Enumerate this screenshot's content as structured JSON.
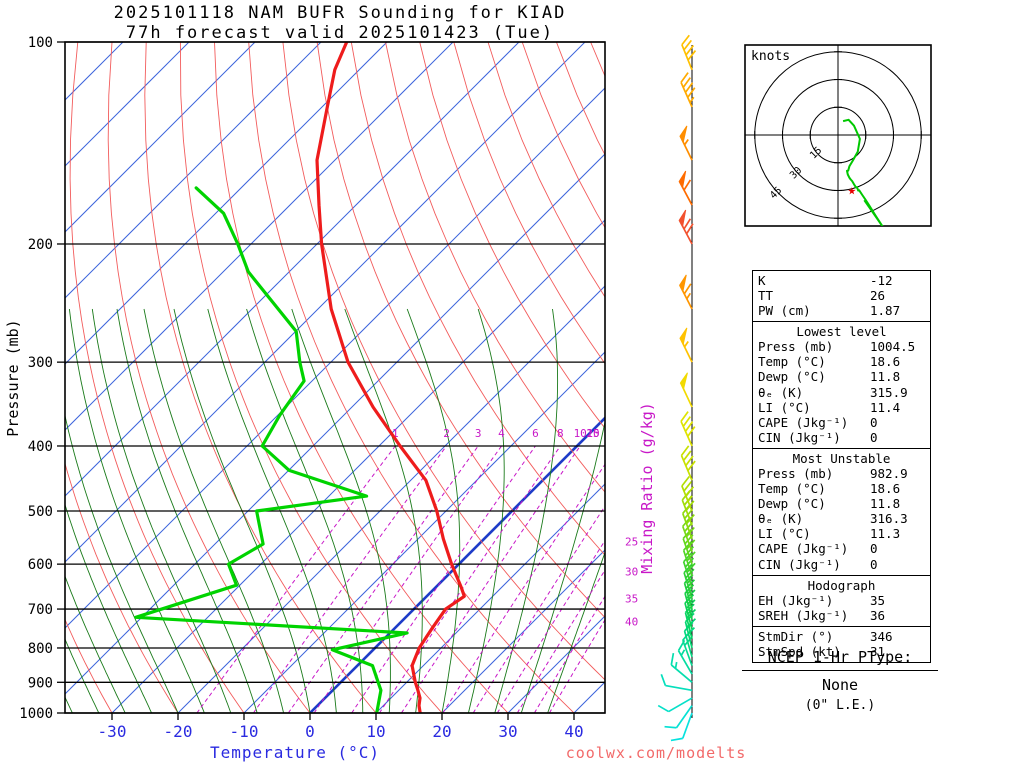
{
  "title": {
    "line1": "2025101118 NAM BUFR Sounding for KIAD",
    "line2": "77h forecast valid 2025101423 (Tue)"
  },
  "axes": {
    "pressure_label": "Pressure (mb)",
    "temperature_label": "Temperature (°C)",
    "mixing_ratio_label": "Mixing Ratio (g/kg)",
    "pressure_ticks": [
      100,
      200,
      300,
      400,
      500,
      600,
      700,
      800,
      900,
      1000
    ],
    "temperature_ticks": [
      -30,
      -20,
      -10,
      0,
      10,
      20,
      30,
      40
    ]
  },
  "chart_data": {
    "type": "line",
    "diagram": "skew-t-log-p",
    "title": "2025101118 NAM BUFR Sounding for KIAD, 77h forecast valid 2025101423 (Tue)",
    "x_axis": {
      "label": "Temperature (°C)",
      "ticks": [
        -30,
        -20,
        -10,
        0,
        10,
        20,
        30,
        40
      ]
    },
    "y_axis": {
      "label": "Pressure (mb)",
      "scale": "log",
      "ticks": [
        100,
        200,
        300,
        400,
        500,
        600,
        700,
        800,
        900,
        1000
      ]
    },
    "series": [
      {
        "name": "Temperature (°C)",
        "color": "#ee1c1c",
        "pressure_mb": [
          1000,
          975,
          950,
          925,
          900,
          850,
          800,
          750,
          700,
          670,
          650,
          600,
          550,
          500,
          450,
          400,
          350,
          300,
          250,
          200,
          175,
          150,
          125,
          110,
          100
        ],
        "values": [
          16.7,
          15.4,
          14.4,
          12.9,
          11.3,
          8.3,
          6.7,
          5.7,
          4.8,
          5.7,
          3.9,
          -1.1,
          -6.2,
          -11.4,
          -17.7,
          -26.8,
          -36.8,
          -47.4,
          -58.0,
          -69.3,
          -75.6,
          -82.7,
          -89.2,
          -93.7,
          -96.1
        ]
      },
      {
        "name": "Dewpoint (°C)",
        "color": "#00d300",
        "pressure_mb": [
          1000,
          925,
          850,
          805,
          760,
          720,
          645,
          600,
          560,
          500,
          475,
          435,
          400,
          360,
          320,
          300,
          270,
          220,
          200,
          180,
          165
        ],
        "values": [
          10.1,
          7.3,
          2.3,
          -6.2,
          2.6,
          -40.9,
          -30.5,
          -34.9,
          -32.7,
          -38.7,
          -24.3,
          -39.9,
          -47.7,
          -49.7,
          -51.2,
          -54.7,
          -59.9,
          -76.2,
          -82.0,
          -88.8,
          -96.8
        ]
      }
    ],
    "mixing_ratio_lines_gkg": [
      1,
      2,
      3,
      4,
      6,
      8,
      10,
      15,
      20,
      25,
      30,
      35,
      40
    ],
    "wind_barbs_kt": [
      {
        "p": 1000,
        "dir": 200,
        "spd": 8,
        "color": "#06e2de"
      },
      {
        "p": 975,
        "dir": 215,
        "spd": 10,
        "color": "#06e1d4"
      },
      {
        "p": 950,
        "dir": 240,
        "spd": 10,
        "color": "#06e0c8"
      },
      {
        "p": 925,
        "dir": 280,
        "spd": 12,
        "color": "#05dfbc"
      },
      {
        "p": 900,
        "dir": 310,
        "spd": 14,
        "color": "#05deae"
      },
      {
        "p": 875,
        "dir": 330,
        "spd": 16,
        "color": "#04dca0"
      },
      {
        "p": 850,
        "dir": 340,
        "spd": 18,
        "color": "#04da92"
      },
      {
        "p": 825,
        "dir": 344,
        "spd": 20,
        "color": "#04d882"
      },
      {
        "p": 800,
        "dir": 346,
        "spd": 20,
        "color": "#03d672"
      },
      {
        "p": 775,
        "dir": 346,
        "spd": 22,
        "color": "#06d462"
      },
      {
        "p": 750,
        "dir": 345,
        "spd": 24,
        "color": "#0dd254"
      },
      {
        "p": 725,
        "dir": 345,
        "spd": 24,
        "color": "#16d048"
      },
      {
        "p": 700,
        "dir": 344,
        "spd": 25,
        "color": "#20ce3e"
      },
      {
        "p": 675,
        "dir": 343,
        "spd": 26,
        "color": "#2ed034"
      },
      {
        "p": 650,
        "dir": 342,
        "spd": 28,
        "color": "#3ed32c"
      },
      {
        "p": 625,
        "dir": 342,
        "spd": 28,
        "color": "#50d524"
      },
      {
        "p": 600,
        "dir": 341,
        "spd": 30,
        "color": "#64d71c"
      },
      {
        "p": 575,
        "dir": 340,
        "spd": 30,
        "color": "#78d914"
      },
      {
        "p": 550,
        "dir": 340,
        "spd": 32,
        "color": "#8cdb0c"
      },
      {
        "p": 525,
        "dir": 339,
        "spd": 32,
        "color": "#a0dd06"
      },
      {
        "p": 500,
        "dir": 338,
        "spd": 35,
        "color": "#b2df02"
      },
      {
        "p": 450,
        "dir": 337,
        "spd": 38,
        "color": "#c8e100"
      },
      {
        "p": 400,
        "dir": 336,
        "spd": 42,
        "color": "#dee300"
      },
      {
        "p": 350,
        "dir": 335,
        "spd": 48,
        "color": "#f2da00"
      },
      {
        "p": 300,
        "dir": 334,
        "spd": 55,
        "color": "#ffc200"
      },
      {
        "p": 250,
        "dir": 333,
        "spd": 65,
        "color": "#ff9600"
      },
      {
        "p": 200,
        "dir": 332,
        "spd": 70,
        "color": "#f2512e"
      },
      {
        "p": 175,
        "dir": 332,
        "spd": 60,
        "color": "#ff6c00"
      },
      {
        "p": 150,
        "dir": 334,
        "spd": 55,
        "color": "#ff8e00"
      },
      {
        "p": 125,
        "dir": 336,
        "spd": 45,
        "color": "#ffaa00"
      },
      {
        "p": 110,
        "dir": 338,
        "spd": 38,
        "color": "#ffc000"
      }
    ]
  },
  "hodograph": {
    "unit_label": "knots",
    "rings_kt": [
      15,
      30,
      45
    ],
    "storm_motion": {
      "dir_deg": 346,
      "spd_kt": 31
    }
  },
  "stats_panel": {
    "sections": [
      {
        "header": null,
        "rows": [
          [
            "K",
            "-12"
          ],
          [
            "TT",
            "26"
          ],
          [
            "PW (cm)",
            "1.87"
          ]
        ]
      },
      {
        "header": "Lowest level",
        "rows": [
          [
            "Press (mb)",
            "1004.5"
          ],
          [
            "Temp (°C)",
            "18.6"
          ],
          [
            "Dewp (°C)",
            "11.8"
          ],
          [
            "θₑ (K)",
            "315.9"
          ],
          [
            "LI (°C)",
            "11.4"
          ],
          [
            "CAPE (Jkg⁻¹)",
            "0"
          ],
          [
            "CIN (Jkg⁻¹)",
            "0"
          ]
        ]
      },
      {
        "header": "Most Unstable",
        "rows": [
          [
            "Press (mb)",
            "982.9"
          ],
          [
            "Temp (°C)",
            "18.6"
          ],
          [
            "Dewp (°C)",
            "11.8"
          ],
          [
            "θₑ (K)",
            "316.3"
          ],
          [
            "LI (°C)",
            "11.3"
          ],
          [
            "CAPE (Jkg⁻¹)",
            "0"
          ],
          [
            "CIN (Jkg⁻¹)",
            "0"
          ]
        ]
      },
      {
        "header": "Hodograph",
        "rows": [
          [
            "EH (Jkg⁻¹)",
            "35"
          ],
          [
            "SREH (Jkg⁻¹)",
            "36"
          ]
        ]
      },
      {
        "header": null,
        "rows": [
          [
            "StmDir (°)",
            "346"
          ],
          [
            "StmSpd (kt)",
            "31"
          ]
        ]
      }
    ]
  },
  "ptype": {
    "title": "NCEP 1-Hr PType:",
    "value": "None",
    "note": "(0\" L.E.)"
  },
  "watermark": "coolwx.com/modelts",
  "colors": {
    "isotherm": "#3c64dc",
    "freezing_line": "#1e3cc8",
    "dry_adiabat": "#f25c5c",
    "moist_adiabat": "#1a7a1a",
    "mixing_ratio": "#c818c8",
    "temperature_curve": "#ee1c1c",
    "dewpoint_curve": "#00d300",
    "hodograph_trace": "#00c800",
    "storm_star": "#e80000",
    "watermark": "#f26a6a",
    "temp_axis_text": "#2a2ae0"
  }
}
